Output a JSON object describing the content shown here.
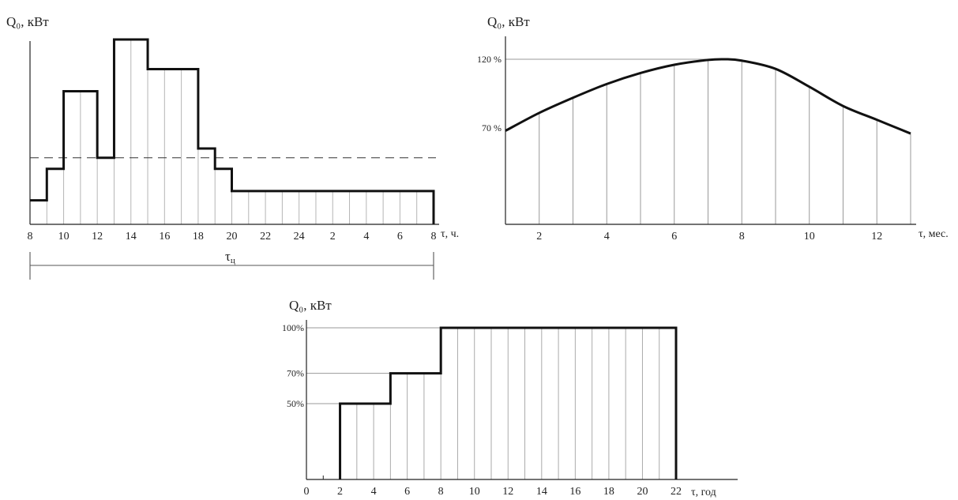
{
  "chart_data": [
    {
      "type": "line",
      "style": "step",
      "ylabel": "Q₀, кВт",
      "xlabel": "τ, ч.",
      "xlim": [
        8,
        32
      ],
      "ylim": [
        0,
        100
      ],
      "x_tick_labels": [
        "8",
        "10",
        "12",
        "14",
        "16",
        "18",
        "20",
        "22",
        "24",
        "2",
        "4",
        "6",
        "8"
      ],
      "x_tick_hours": [
        8,
        10,
        12,
        14,
        16,
        18,
        20,
        22,
        24,
        26,
        28,
        30,
        32
      ],
      "step_x": [
        8,
        9,
        10,
        12,
        13,
        15,
        18,
        19,
        20,
        32
      ],
      "step_y": [
        13,
        30,
        72,
        36,
        100,
        84,
        41,
        30,
        18,
        18
      ],
      "average_level": 36,
      "cycle_label": "τ",
      "cycle_subscript": "ц"
    },
    {
      "type": "line",
      "ylabel": "Q₀, кВт",
      "xlabel": "τ, мес.",
      "xlim": [
        1,
        13
      ],
      "ylim": [
        0,
        120
      ],
      "x_tick_labels": [
        "2",
        "4",
        "6",
        "8",
        "10",
        "12"
      ],
      "x_tick_values": [
        2,
        4,
        6,
        8,
        10,
        12
      ],
      "y_tick_labels": [
        "70 %",
        "120 %"
      ],
      "y_tick_values": [
        70,
        120
      ],
      "x": [
        1,
        2,
        3,
        4,
        5,
        6,
        7,
        7.5,
        8,
        9,
        10,
        11,
        12,
        13
      ],
      "y": [
        68,
        81,
        92,
        102,
        110,
        116,
        119.5,
        120,
        119,
        113,
        100,
        86,
        76,
        66
      ]
    },
    {
      "type": "line",
      "style": "step",
      "ylabel": "Q₀, кВт",
      "xlabel": "τ, год",
      "xlim": [
        0,
        22
      ],
      "ylim": [
        0,
        100
      ],
      "x_tick_labels": [
        "0",
        "2",
        "4",
        "6",
        "8",
        "10",
        "12",
        "14",
        "16",
        "18",
        "20",
        "22"
      ],
      "x_tick_values": [
        0,
        2,
        4,
        6,
        8,
        10,
        12,
        14,
        16,
        18,
        20,
        22
      ],
      "y_tick_labels": [
        "50%",
        "70%",
        "100%"
      ],
      "y_tick_values": [
        50,
        70,
        100
      ],
      "step_x": [
        2,
        5,
        8,
        22
      ],
      "step_y": [
        50,
        70,
        100
      ]
    }
  ]
}
